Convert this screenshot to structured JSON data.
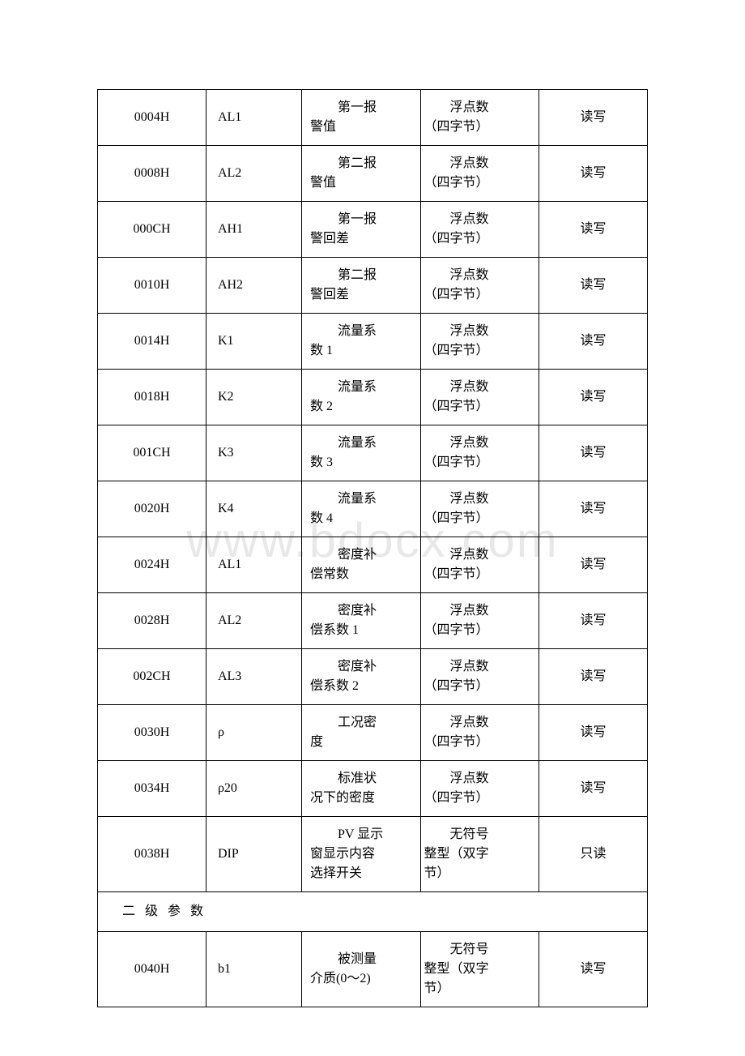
{
  "watermark": "www.bdocx.com",
  "rows": [
    {
      "addr": "0004H",
      "sym": "AL1",
      "desc1": "第一报",
      "desc2": "警值",
      "type1": "浮点数",
      "type2": "（四字节）",
      "rw": "读写"
    },
    {
      "addr": "0008H",
      "sym": "AL2",
      "desc1": "第二报",
      "desc2": "警值",
      "type1": "浮点数",
      "type2": "（四字节）",
      "rw": "读写"
    },
    {
      "addr": "000CH",
      "sym": "AH1",
      "desc1": "第一报",
      "desc2": "警回差",
      "type1": "浮点数",
      "type2": "（四字节）",
      "rw": "读写"
    },
    {
      "addr": "0010H",
      "sym": "AH2",
      "desc1": "第二报",
      "desc2": "警回差",
      "type1": "浮点数",
      "type2": "（四字节）",
      "rw": "读写"
    },
    {
      "addr": "0014H",
      "sym": "K1",
      "desc1": "流量系",
      "desc2": "数 1",
      "type1": "浮点数",
      "type2": "（四字节）",
      "rw": "读写"
    },
    {
      "addr": "0018H",
      "sym": "K2",
      "desc1": "流量系",
      "desc2": "数 2",
      "type1": "浮点数",
      "type2": "（四字节）",
      "rw": "读写"
    },
    {
      "addr": "001CH",
      "sym": "K3",
      "desc1": "流量系",
      "desc2": "数 3",
      "type1": "浮点数",
      "type2": "（四字节）",
      "rw": "读写"
    },
    {
      "addr": "0020H",
      "sym": "K4",
      "desc1": "流量系",
      "desc2": "数 4",
      "type1": "浮点数",
      "type2": "（四字节）",
      "rw": "读写"
    },
    {
      "addr": "0024H",
      "sym": "AL1",
      "desc1": "密度补",
      "desc2": "偿常数",
      "type1": "浮点数",
      "type2": "（四字节）",
      "rw": "读写"
    },
    {
      "addr": "0028H",
      "sym": "AL2",
      "desc1": "密度补",
      "desc2": "偿系数 1",
      "type1": "浮点数",
      "type2": "（四字节）",
      "rw": "读写"
    },
    {
      "addr": "002CH",
      "sym": "AL3",
      "desc1": "密度补",
      "desc2": "偿系数 2",
      "type1": "浮点数",
      "type2": "（四字节）",
      "rw": "读写"
    },
    {
      "addr": "0030H",
      "sym": "ρ",
      "desc1": "工况密",
      "desc2": "度",
      "type1": "浮点数",
      "type2": "（四字节）",
      "rw": "读写"
    },
    {
      "addr": "0034H",
      "sym": "ρ20",
      "desc1": "标准状",
      "desc2": "况下的密度",
      "type1": "浮点数",
      "type2": "（四字节）",
      "rw": "读写"
    }
  ],
  "row_dip": {
    "addr": "0038H",
    "sym": "DIP",
    "desc1": "PV 显示",
    "desc2": "窗显示内容",
    "desc3": "选择开关",
    "type1": "无符号",
    "type2": "整型（双字",
    "type3": "节）",
    "rw": "只读"
  },
  "section_header": "二 级 参 数",
  "row_b1": {
    "addr": "0040H",
    "sym": "b1",
    "desc1": "被测量",
    "desc2": "介质(0～2)",
    "type1": "无符号",
    "type2": "整型（双字",
    "type3": "节）",
    "rw": "读写"
  }
}
